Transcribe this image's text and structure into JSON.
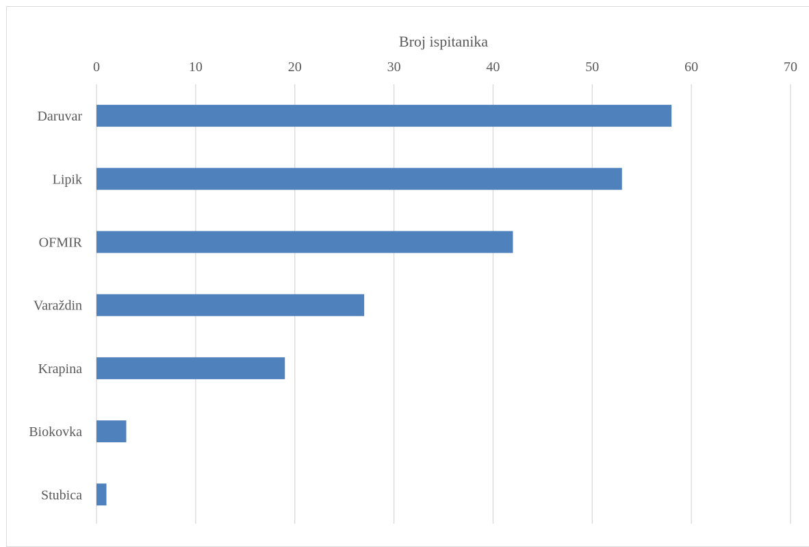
{
  "chart_data": {
    "type": "bar",
    "orientation": "horizontal",
    "xlabel": "Broj ispitanika",
    "xlabel_position": "top",
    "categories": [
      "Daruvar",
      "Lipik",
      "OFMIR",
      "Varaždin",
      "Krapina",
      "Biokovka",
      "Stubica"
    ],
    "values": [
      58,
      53,
      42,
      27,
      19,
      3,
      1
    ],
    "xlim": [
      0,
      70
    ],
    "xticks": [
      0,
      10,
      20,
      30,
      40,
      50,
      60,
      70
    ],
    "grid": "vertical",
    "legend": "none",
    "bar_color": "#4f81bd"
  }
}
